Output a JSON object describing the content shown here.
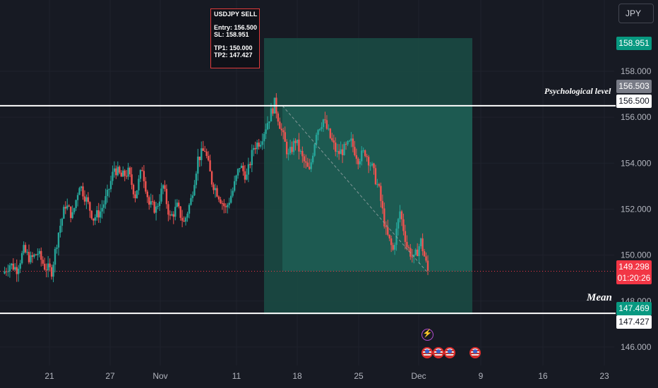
{
  "chart_data": {
    "type": "candlestick",
    "symbol": "USDJPY",
    "currency": "JPY",
    "y_range": [
      145.2,
      161.1
    ],
    "y_ticks": [
      "146.000",
      "148.000",
      "150.000",
      "152.000",
      "154.000",
      "156.000",
      "158.000"
    ],
    "x_ticks": [
      "21",
      "27",
      "Nov",
      "11",
      "18",
      "25",
      "Dec",
      "9",
      "16",
      "23"
    ],
    "price_path": [
      149.2,
      149.6,
      149.4,
      150.2,
      149.8,
      150.1,
      149.5,
      149.3,
      151.0,
      152.2,
      151.7,
      153.1,
      152.4,
      151.6,
      151.9,
      152.6,
      153.8,
      153.4,
      153.6,
      152.6,
      153.8,
      152.2,
      152.0,
      153.0,
      151.6,
      152.1,
      151.4,
      152.4,
      154.2,
      154.6,
      153.2,
      152.6,
      152.0,
      152.8,
      153.9,
      153.4,
      154.7,
      155.0,
      155.8,
      156.6,
      155.4,
      154.3,
      155.0,
      154.2,
      153.6,
      155.4,
      155.9,
      155.1,
      154.4,
      154.6,
      154.9,
      154.2,
      154.5,
      153.8,
      152.8,
      151.0,
      150.2,
      151.9,
      150.4,
      149.8,
      150.6,
      149.3
    ],
    "sell_setup": {
      "title": "USDJPY SELL",
      "entry_text": "Entry: 156.500",
      "sl_text": "SL: 158.951",
      "tp1_text": "TP1: 150.000",
      "tp2_text": "TP2: 147.427",
      "entry": 156.5,
      "stop_loss": 158.951,
      "tp1": 150.0,
      "tp2": 147.427
    },
    "levels": [
      {
        "name": "Psychological level",
        "value": 156.5
      },
      {
        "name": "Mean",
        "value": 147.469
      }
    ],
    "price_labels": {
      "sl": "158.951",
      "level_high": "156.503",
      "level_entry": "156.500",
      "current_price": "149.298",
      "countdown": "01:20:26",
      "mean": "147.469",
      "tp2": "147.427"
    },
    "current_price": 149.298,
    "colors": {
      "background": "#171a23",
      "up": "#26a69a",
      "down": "#ef5350",
      "zone": "#1f5a52",
      "current_price": "#f23645",
      "sl_badge": "#089981",
      "level_badge": "#787b86"
    }
  },
  "events": {
    "bolt_icon": "lightning-icon",
    "flag_icon": "us-flag-icon"
  }
}
